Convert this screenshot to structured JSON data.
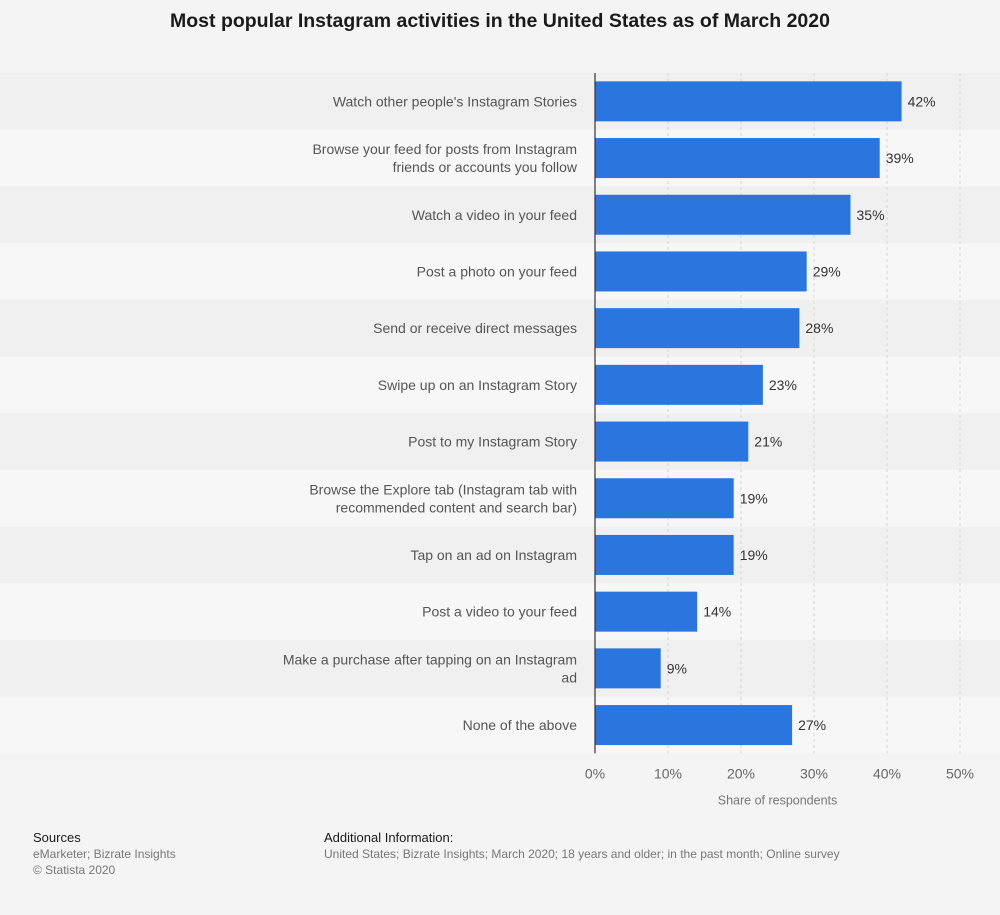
{
  "chart_data": {
    "type": "bar",
    "orientation": "horizontal",
    "title": "Most popular Instagram activities in the United States as of March 2020",
    "categories": [
      [
        "Watch other people's Instagram Stories"
      ],
      [
        "Browse your feed for posts from Instagram",
        "friends or accounts you follow"
      ],
      [
        "Watch a video in your feed"
      ],
      [
        "Post a photo on your feed"
      ],
      [
        "Send or receive direct messages"
      ],
      [
        "Swipe up on an Instagram Story"
      ],
      [
        "Post to my Instagram Story"
      ],
      [
        "Browse the Explore tab (Instagram tab with",
        "recommended content and search bar)"
      ],
      [
        "Tap on an ad on Instagram"
      ],
      [
        "Post a video to your feed"
      ],
      [
        "Make a purchase after tapping on an Instagram",
        "ad"
      ],
      [
        "None of the above"
      ]
    ],
    "values": [
      42,
      39,
      35,
      29,
      28,
      23,
      21,
      19,
      19,
      14,
      9,
      27
    ],
    "value_labels": [
      "42%",
      "39%",
      "35%",
      "29%",
      "28%",
      "23%",
      "21%",
      "19%",
      "19%",
      "14%",
      "9%",
      "27%"
    ],
    "xlabel": "Share of respondents",
    "xlim": [
      0,
      50
    ],
    "ticks": [
      "0%",
      "10%",
      "20%",
      "30%",
      "40%",
      "50%"
    ],
    "tick_values": [
      0,
      10,
      20,
      30,
      40,
      50
    ],
    "bar_color": "#2b76de",
    "grid": true
  },
  "footer": {
    "sources_heading": "Sources",
    "sources_line1": "eMarketer; Bizrate Insights",
    "sources_line2": "© Statista 2020",
    "additional_heading": "Additional Information:",
    "additional_text": "United States; Bizrate Insights; March 2020; 18 years and older; in the past month; Online survey"
  }
}
